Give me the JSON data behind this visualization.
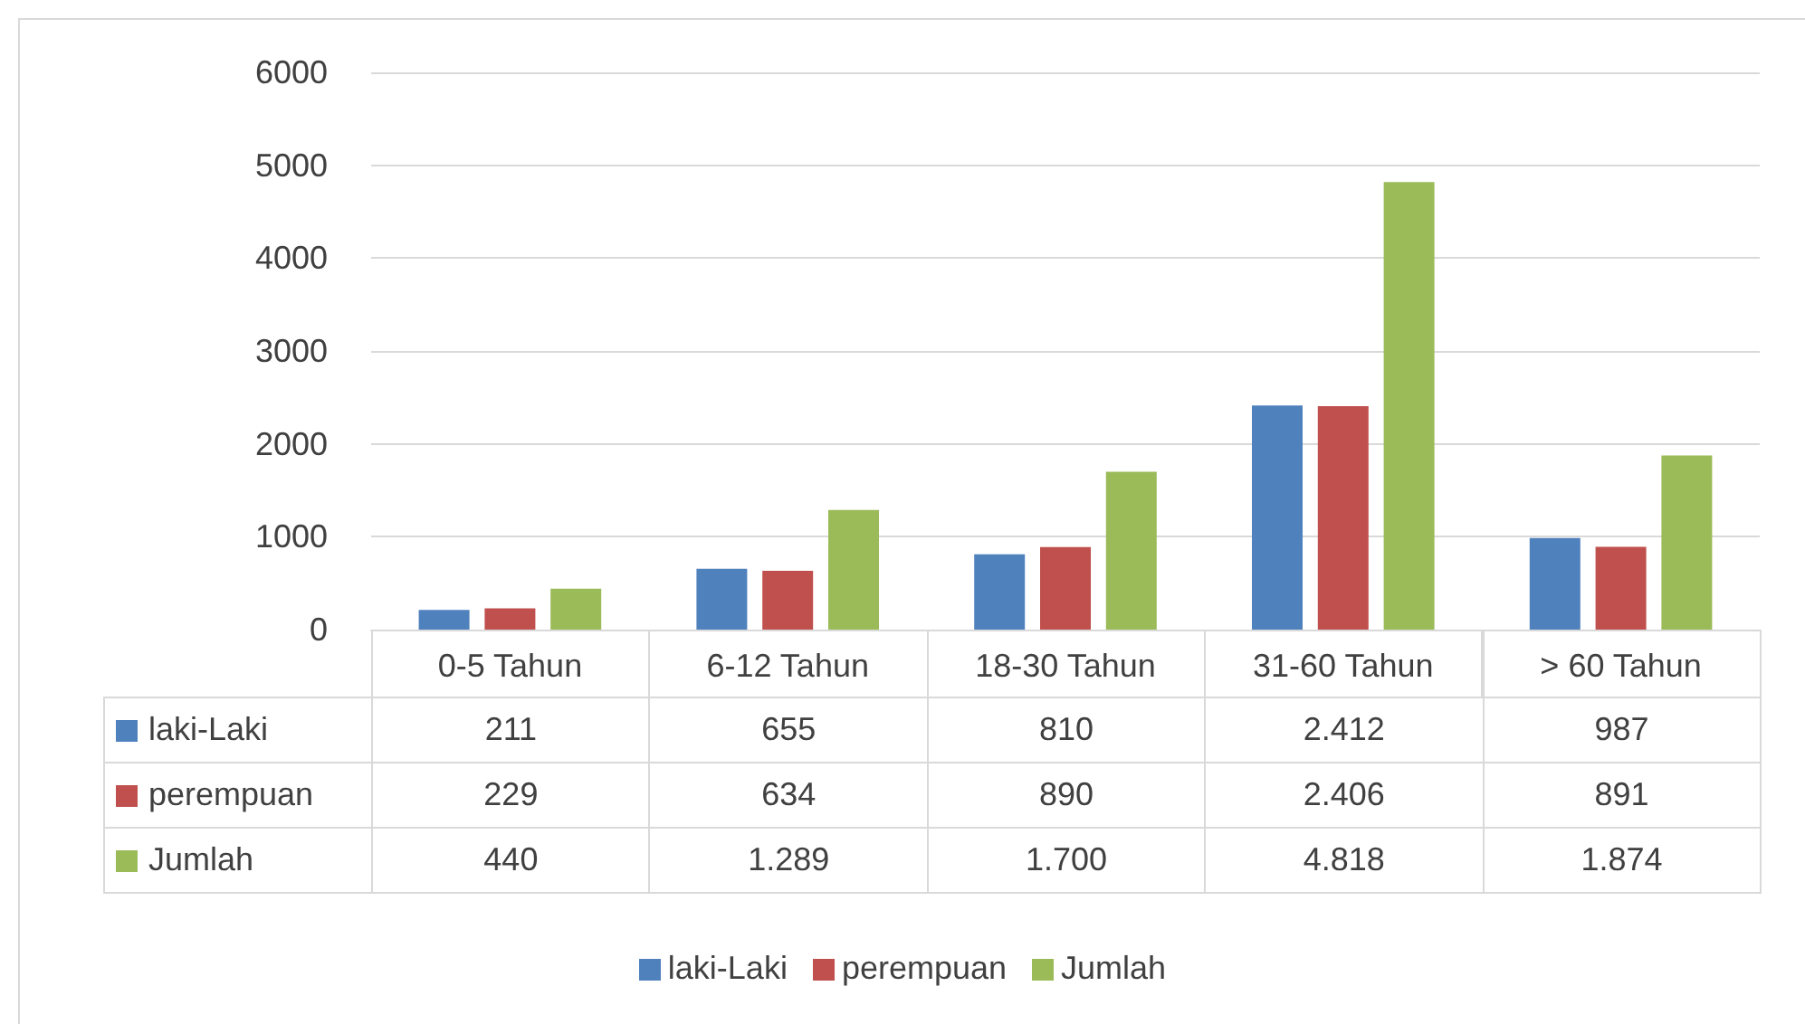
{
  "chart_data": {
    "type": "bar",
    "categories": [
      "0-5 Tahun",
      "6-12 Tahun",
      "18-30 Tahun",
      "31-60 Tahun",
      "> 60 Tahun"
    ],
    "series": [
      {
        "name": "laki-Laki",
        "color": "#4f81bd",
        "values": [
          211,
          655,
          810,
          2412,
          987
        ],
        "value_labels": [
          "211",
          "655",
          "810",
          "2.412",
          "987"
        ]
      },
      {
        "name": "perempuan",
        "color": "#c0504d",
        "values": [
          229,
          634,
          890,
          2406,
          891
        ],
        "value_labels": [
          "229",
          "634",
          "890",
          "2.406",
          "891"
        ]
      },
      {
        "name": "Jumlah",
        "color": "#9bbb59",
        "values": [
          440,
          1289,
          1700,
          4818,
          1874
        ],
        "value_labels": [
          "440",
          "1.289",
          "1.700",
          "4.818",
          "1.874"
        ]
      }
    ],
    "ylim": [
      0,
      6000
    ],
    "yticks": [
      0,
      1000,
      2000,
      3000,
      4000,
      5000,
      6000
    ],
    "grid": "y",
    "legend": "bottom"
  }
}
